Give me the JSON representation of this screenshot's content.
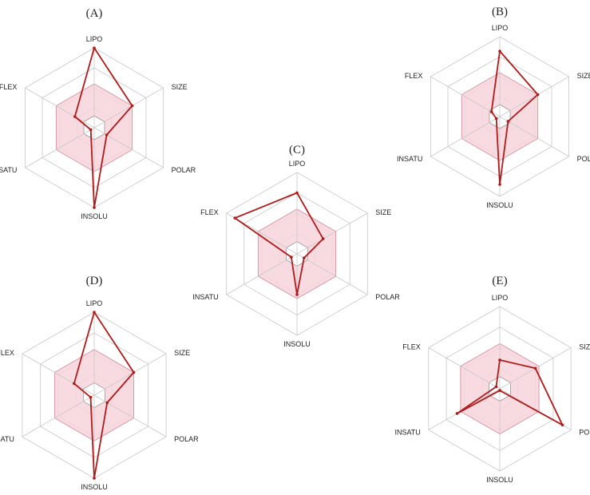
{
  "chart_data": [
    {
      "type": "radar",
      "panel_label": "(A)",
      "axes": [
        "LIPO",
        "SIZE",
        "POLAR",
        "INSOLU",
        "INSATU",
        "FLEX"
      ],
      "range": [
        0,
        1
      ],
      "optimal_zone": [
        0.55,
        0.55,
        0.55,
        0.55,
        0.55,
        0.55
      ],
      "inner_zone": [
        0.15,
        0.15,
        0.15,
        0.15,
        0.15,
        0.15
      ],
      "values": [
        1.0,
        0.55,
        0.18,
        1.0,
        0.05,
        0.28
      ]
    },
    {
      "type": "radar",
      "panel_label": "(B)",
      "axes": [
        "LIPO",
        "SIZE",
        "POLAR",
        "INSOLU",
        "INSATU",
        "FLEX"
      ],
      "range": [
        0,
        1
      ],
      "optimal_zone": [
        0.55,
        0.55,
        0.55,
        0.55,
        0.55,
        0.55
      ],
      "inner_zone": [
        0.15,
        0.15,
        0.15,
        0.15,
        0.15,
        0.15
      ],
      "values": [
        0.82,
        0.55,
        0.12,
        0.85,
        0.05,
        0.12
      ]
    },
    {
      "type": "radar",
      "panel_label": "(C)",
      "axes": [
        "LIPO",
        "SIZE",
        "POLAR",
        "INSOLU",
        "INSATU",
        "FLEX"
      ],
      "range": [
        0,
        1
      ],
      "optimal_zone": [
        0.55,
        0.55,
        0.55,
        0.55,
        0.55,
        0.55
      ],
      "inner_zone": [
        0.15,
        0.15,
        0.15,
        0.15,
        0.15,
        0.15
      ],
      "values": [
        0.75,
        0.37,
        0.1,
        0.5,
        0.08,
        0.88
      ]
    },
    {
      "type": "radar",
      "panel_label": "(D)",
      "axes": [
        "LIPO",
        "SIZE",
        "POLAR",
        "INSOLU",
        "INSATU",
        "FLEX"
      ],
      "range": [
        0,
        1
      ],
      "optimal_zone": [
        0.55,
        0.55,
        0.55,
        0.55,
        0.55,
        0.55
      ],
      "inner_zone": [
        0.15,
        0.15,
        0.15,
        0.15,
        0.15,
        0.15
      ],
      "values": [
        1.0,
        0.55,
        0.18,
        1.0,
        0.05,
        0.28
      ]
    },
    {
      "type": "radar",
      "panel_label": "(E)",
      "axes": [
        "LIPO",
        "SIZE",
        "POLAR",
        "INSOLU",
        "INSATU",
        "FLEX"
      ],
      "range": [
        0,
        1
      ],
      "optimal_zone": [
        0.55,
        0.55,
        0.55,
        0.55,
        0.55,
        0.55
      ],
      "inner_zone": [
        0.15,
        0.15,
        0.15,
        0.15,
        0.15,
        0.15
      ],
      "values": [
        0.35,
        0.5,
        0.88,
        0.02,
        0.6,
        0.05
      ]
    }
  ],
  "colors": {
    "zone_fill": "#f7d3dc",
    "zone_stroke": "#d89aaa",
    "grid": "#c8c8c8",
    "data_line": "#b11a1a",
    "inner_fill": "#ffffff",
    "inner_stroke": "#999999"
  }
}
